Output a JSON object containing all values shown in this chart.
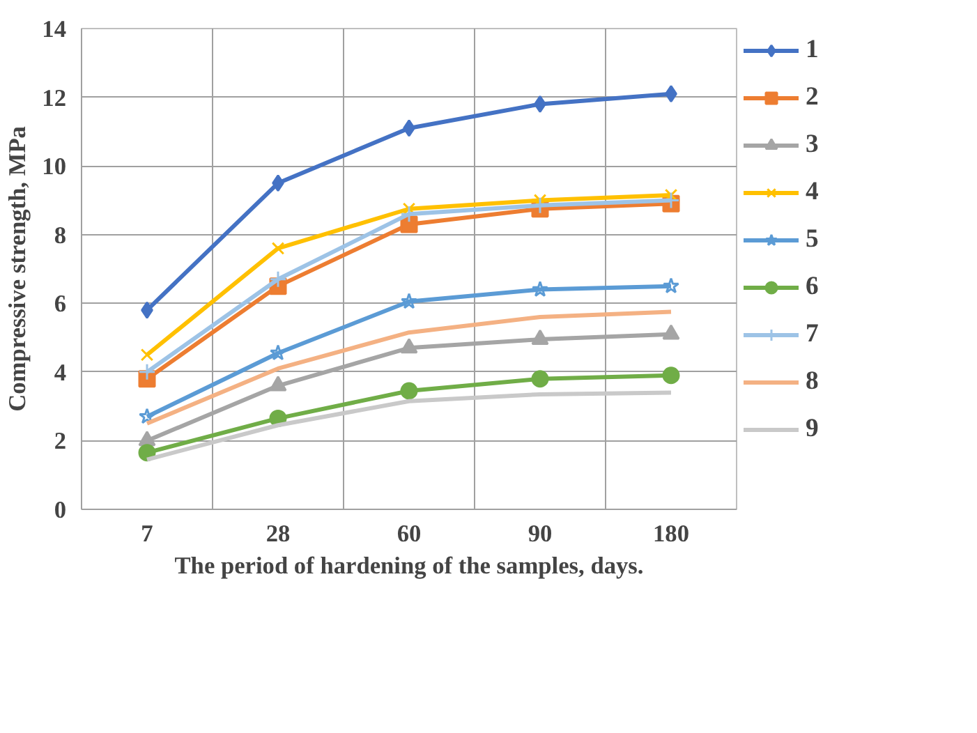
{
  "chart_data": {
    "type": "line",
    "xlabel": "The period of hardening of the samples, days.",
    "ylabel": "Compressive strength, MPa",
    "categories": [
      "7",
      "28",
      "60",
      "90",
      "180"
    ],
    "ylim": [
      0,
      14
    ],
    "yticks": [
      0,
      2,
      4,
      6,
      8,
      10,
      12,
      14
    ],
    "grid": true,
    "legend": "right",
    "line_style": "solid",
    "series": [
      {
        "name": "1",
        "color": "#4472c4",
        "marker": "diamond",
        "values": [
          5.8,
          9.5,
          11.1,
          11.8,
          12.1
        ]
      },
      {
        "name": "2",
        "color": "#ed7d31",
        "marker": "square",
        "values": [
          3.8,
          6.5,
          8.3,
          8.75,
          8.9
        ]
      },
      {
        "name": "3",
        "color": "#a5a5a5",
        "marker": "triangle",
        "values": [
          2.0,
          3.6,
          4.7,
          4.95,
          5.1
        ]
      },
      {
        "name": "4",
        "color": "#ffc000",
        "marker": "x",
        "values": [
          4.5,
          7.6,
          8.75,
          9.0,
          9.15
        ]
      },
      {
        "name": "5",
        "color": "#5b9bd5",
        "marker": "star",
        "values": [
          2.7,
          4.55,
          6.05,
          6.4,
          6.5
        ]
      },
      {
        "name": "6",
        "color": "#70ad47",
        "marker": "circle",
        "values": [
          1.65,
          2.65,
          3.45,
          3.8,
          3.9
        ]
      },
      {
        "name": "7",
        "color": "#9dc3e6",
        "marker": "cross",
        "values": [
          4.0,
          6.7,
          8.6,
          8.85,
          9.0
        ]
      },
      {
        "name": "8",
        "color": "#f4b183",
        "marker": "none",
        "values": [
          2.5,
          4.1,
          5.15,
          5.6,
          5.75
        ]
      },
      {
        "name": "9",
        "color": "#c9c9c9",
        "marker": "none",
        "values": [
          1.45,
          2.45,
          3.15,
          3.35,
          3.4
        ]
      }
    ]
  }
}
